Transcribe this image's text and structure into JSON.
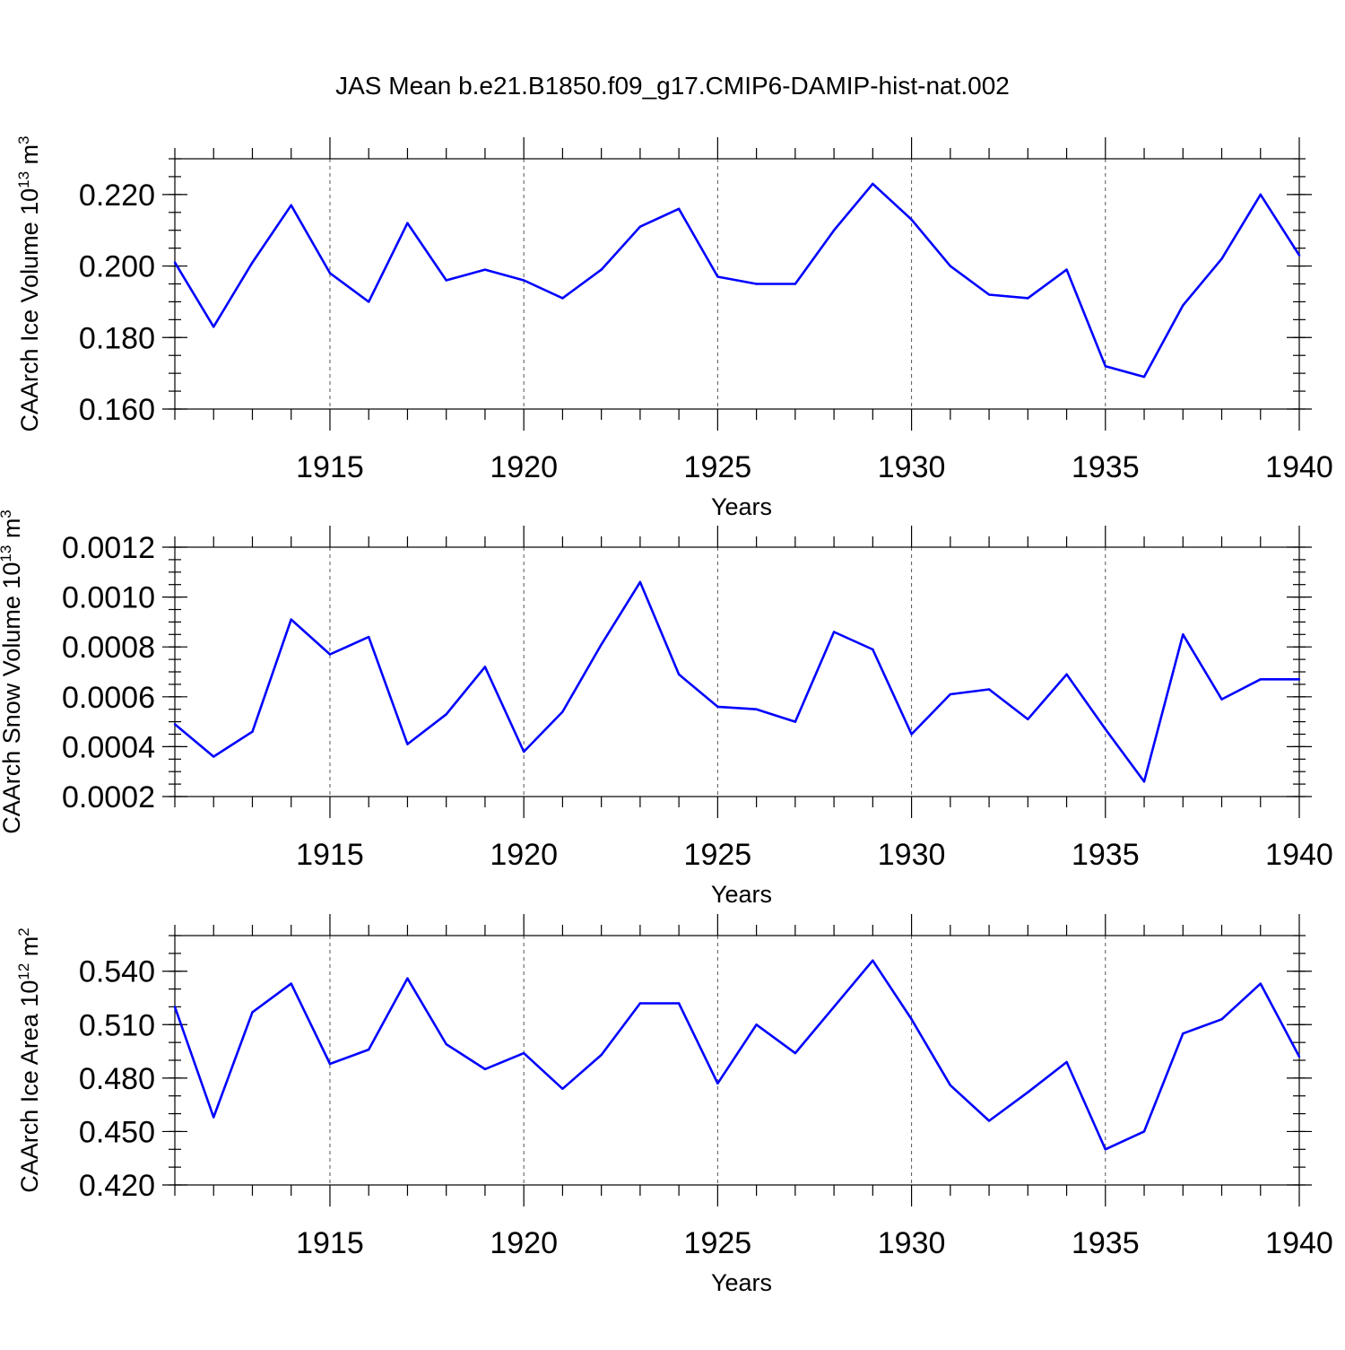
{
  "figure": {
    "title": "JAS Mean b.e21.B1850.f09_g17.CMIP6-DAMIP-hist-nat.002",
    "line_color": "#0000ff"
  },
  "chart_data": [
    {
      "type": "line",
      "ylabel": "CAArch Ice Volume 10",
      "ylabel_exp": "13",
      "ylabel_unit": " m",
      "ylabel_unit_exp": "3",
      "xlabel": "Years",
      "xlim": [
        1911,
        1940
      ],
      "ylim": [
        0.16,
        0.23
      ],
      "yticks": [
        0.16,
        0.18,
        0.2,
        0.22
      ],
      "ytick_labels": [
        "0.160",
        "0.180",
        "0.200",
        "0.220"
      ],
      "yminor_step": 0.005,
      "xticks": [
        1915,
        1920,
        1925,
        1930,
        1935,
        1940
      ],
      "xtick_labels": [
        "1915",
        "1920",
        "1925",
        "1930",
        "1935",
        "1940"
      ],
      "x": [
        1911,
        1912,
        1913,
        1914,
        1915,
        1916,
        1917,
        1918,
        1919,
        1920,
        1921,
        1922,
        1923,
        1924,
        1925,
        1926,
        1927,
        1928,
        1929,
        1930,
        1931,
        1932,
        1933,
        1934,
        1935,
        1936,
        1937,
        1938,
        1939,
        1940
      ],
      "values": [
        0.201,
        0.183,
        0.201,
        0.217,
        0.198,
        0.19,
        0.212,
        0.196,
        0.199,
        0.196,
        0.191,
        0.199,
        0.211,
        0.216,
        0.197,
        0.195,
        0.195,
        0.21,
        0.223,
        0.213,
        0.2,
        0.192,
        0.191,
        0.199,
        0.172,
        0.169,
        0.189,
        0.202,
        0.22,
        0.203
      ]
    },
    {
      "type": "line",
      "ylabel": "CAArch Snow Volume 10",
      "ylabel_exp": "13",
      "ylabel_unit": " m",
      "ylabel_unit_exp": "3",
      "xlabel": "Years",
      "xlim": [
        1911,
        1940
      ],
      "ylim": [
        0.0002,
        0.0012
      ],
      "yticks": [
        0.0002,
        0.0004,
        0.0006,
        0.0008,
        0.001,
        0.0012
      ],
      "ytick_labels": [
        "0.0002",
        "0.0004",
        "0.0006",
        "0.0008",
        "0.0010",
        "0.0012"
      ],
      "yminor_step": 5e-05,
      "xticks": [
        1915,
        1920,
        1925,
        1930,
        1935,
        1940
      ],
      "xtick_labels": [
        "1915",
        "1920",
        "1925",
        "1930",
        "1935",
        "1940"
      ],
      "x": [
        1911,
        1912,
        1913,
        1914,
        1915,
        1916,
        1917,
        1918,
        1919,
        1920,
        1921,
        1922,
        1923,
        1924,
        1925,
        1926,
        1927,
        1928,
        1929,
        1930,
        1931,
        1932,
        1933,
        1934,
        1935,
        1936,
        1937,
        1938,
        1939,
        1940
      ],
      "values": [
        0.00049,
        0.00036,
        0.00046,
        0.00091,
        0.00077,
        0.00084,
        0.00041,
        0.00053,
        0.00072,
        0.00038,
        0.00054,
        0.00081,
        0.00106,
        0.00069,
        0.00056,
        0.00055,
        0.0005,
        0.00086,
        0.00079,
        0.00045,
        0.00061,
        0.00063,
        0.00051,
        0.00069,
        0.00047,
        0.00026,
        0.00085,
        0.00059,
        0.00067,
        0.00067
      ]
    },
    {
      "type": "line",
      "ylabel": "CAArch Ice Area 10",
      "ylabel_exp": "12",
      "ylabel_unit": " m",
      "ylabel_unit_exp": "2",
      "xlabel": "Years",
      "xlim": [
        1911,
        1940
      ],
      "ylim": [
        0.42,
        0.56
      ],
      "yticks": [
        0.42,
        0.45,
        0.48,
        0.51,
        0.54
      ],
      "ytick_labels": [
        "0.420",
        "0.450",
        "0.480",
        "0.510",
        "0.540"
      ],
      "yminor_step": 0.01,
      "xticks": [
        1915,
        1920,
        1925,
        1930,
        1935,
        1940
      ],
      "xtick_labels": [
        "1915",
        "1920",
        "1925",
        "1930",
        "1935",
        "1940"
      ],
      "x": [
        1911,
        1912,
        1913,
        1914,
        1915,
        1916,
        1917,
        1918,
        1919,
        1920,
        1921,
        1922,
        1923,
        1924,
        1925,
        1926,
        1927,
        1928,
        1929,
        1930,
        1931,
        1932,
        1933,
        1934,
        1935,
        1936,
        1937,
        1938,
        1939,
        1940
      ],
      "values": [
        0.52,
        0.458,
        0.517,
        0.533,
        0.488,
        0.496,
        0.536,
        0.499,
        0.485,
        0.494,
        0.474,
        0.493,
        0.522,
        0.522,
        0.477,
        0.51,
        0.494,
        0.52,
        0.546,
        0.513,
        0.476,
        0.456,
        0.472,
        0.489,
        0.44,
        0.45,
        0.505,
        0.513,
        0.533,
        0.492
      ]
    }
  ]
}
